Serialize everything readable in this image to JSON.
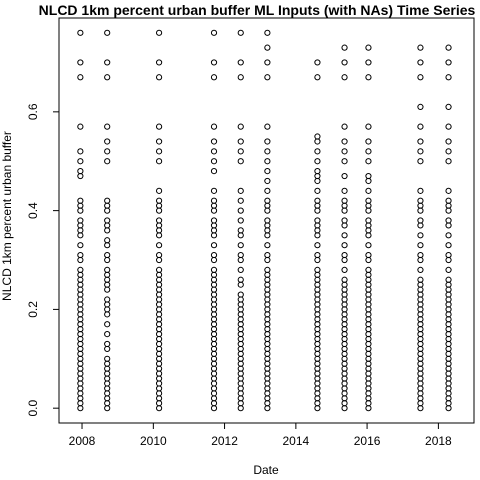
{
  "chart_data": {
    "type": "scatter",
    "title": "NLCD 1km percent urban buffer ML Inputs (with NAs) Time Series",
    "xlabel": "Date",
    "ylabel": "NLCD 1km percent urban buffer",
    "xlim": [
      "2007-05-10",
      "2019-01-01"
    ],
    "ylim": [
      -0.03,
      0.79
    ],
    "x_ticks": [
      {
        "date": "2008-01-01",
        "label": "2008"
      },
      {
        "date": "2010-01-01",
        "label": "2010"
      },
      {
        "date": "2012-01-01",
        "label": "2012"
      },
      {
        "date": "2014-01-01",
        "label": "2014"
      },
      {
        "date": "2016-01-01",
        "label": "2016"
      },
      {
        "date": "2018-01-01",
        "label": "2018"
      }
    ],
    "y_ticks": [
      0.0,
      0.2,
      0.4,
      0.6
    ],
    "y_tick_labels": [
      "0.0",
      "0.2",
      "0.4",
      "0.6"
    ],
    "grid": false,
    "series": [
      {
        "date": "2007-12-15",
        "values": [
          0.76,
          0.7,
          0.67,
          0.57,
          0.52,
          0.5,
          0.48,
          0.47,
          0.42,
          0.41,
          0.4,
          0.38,
          0.37,
          0.36,
          0.35,
          0.33,
          0.31,
          0.3,
          0.28,
          0.27,
          0.26,
          0.25,
          0.24,
          0.23,
          0.22,
          0.21,
          0.2,
          0.19,
          0.18,
          0.17,
          0.16,
          0.15,
          0.14,
          0.13,
          0.12,
          0.11,
          0.1,
          0.09,
          0.08,
          0.07,
          0.06,
          0.05,
          0.04,
          0.03,
          0.02,
          0.01,
          0.0
        ]
      },
      {
        "date": "2008-09-15",
        "values": [
          0.76,
          0.7,
          0.67,
          0.57,
          0.54,
          0.52,
          0.5,
          0.42,
          0.41,
          0.4,
          0.38,
          0.37,
          0.36,
          0.34,
          0.33,
          0.31,
          0.3,
          0.28,
          0.27,
          0.26,
          0.25,
          0.24,
          0.22,
          0.21,
          0.2,
          0.19,
          0.17,
          0.15,
          0.13,
          0.12,
          0.1,
          0.09,
          0.08,
          0.07,
          0.06,
          0.05,
          0.04,
          0.03,
          0.02,
          0.01,
          0.0
        ]
      },
      {
        "date": "2010-03-01",
        "values": [
          0.76,
          0.7,
          0.67,
          0.57,
          0.54,
          0.52,
          0.5,
          0.44,
          0.42,
          0.41,
          0.4,
          0.38,
          0.37,
          0.36,
          0.35,
          0.33,
          0.31,
          0.3,
          0.28,
          0.27,
          0.26,
          0.25,
          0.24,
          0.23,
          0.22,
          0.21,
          0.2,
          0.19,
          0.18,
          0.17,
          0.16,
          0.15,
          0.14,
          0.13,
          0.12,
          0.11,
          0.1,
          0.09,
          0.08,
          0.07,
          0.06,
          0.05,
          0.04,
          0.03,
          0.02,
          0.01,
          0.0
        ]
      },
      {
        "date": "2011-09-15",
        "values": [
          0.76,
          0.7,
          0.67,
          0.57,
          0.54,
          0.52,
          0.5,
          0.48,
          0.44,
          0.42,
          0.41,
          0.4,
          0.38,
          0.37,
          0.36,
          0.35,
          0.33,
          0.31,
          0.3,
          0.28,
          0.27,
          0.26,
          0.25,
          0.24,
          0.23,
          0.22,
          0.21,
          0.2,
          0.19,
          0.18,
          0.17,
          0.16,
          0.15,
          0.14,
          0.13,
          0.12,
          0.11,
          0.1,
          0.09,
          0.08,
          0.07,
          0.06,
          0.05,
          0.04,
          0.03,
          0.02,
          0.01,
          0.0
        ]
      },
      {
        "date": "2012-06-15",
        "values": [
          0.76,
          0.7,
          0.67,
          0.57,
          0.54,
          0.52,
          0.5,
          0.44,
          0.42,
          0.4,
          0.38,
          0.36,
          0.35,
          0.33,
          0.31,
          0.3,
          0.28,
          0.26,
          0.25,
          0.23,
          0.22,
          0.21,
          0.2,
          0.19,
          0.18,
          0.17,
          0.16,
          0.15,
          0.14,
          0.13,
          0.12,
          0.11,
          0.1,
          0.09,
          0.08,
          0.07,
          0.06,
          0.05,
          0.04,
          0.03,
          0.02,
          0.01,
          0.0
        ]
      },
      {
        "date": "2013-03-15",
        "values": [
          0.76,
          0.73,
          0.7,
          0.67,
          0.57,
          0.54,
          0.52,
          0.5,
          0.48,
          0.46,
          0.44,
          0.42,
          0.41,
          0.4,
          0.38,
          0.37,
          0.36,
          0.35,
          0.33,
          0.31,
          0.3,
          0.28,
          0.27,
          0.26,
          0.25,
          0.24,
          0.23,
          0.22,
          0.21,
          0.2,
          0.19,
          0.18,
          0.17,
          0.16,
          0.15,
          0.14,
          0.13,
          0.12,
          0.11,
          0.1,
          0.09,
          0.08,
          0.07,
          0.06,
          0.05,
          0.04,
          0.03,
          0.02,
          0.01,
          0.0
        ]
      },
      {
        "date": "2014-08-10",
        "values": [
          0.7,
          0.67,
          0.55,
          0.54,
          0.52,
          0.5,
          0.48,
          0.47,
          0.46,
          0.44,
          0.42,
          0.41,
          0.4,
          0.38,
          0.37,
          0.36,
          0.35,
          0.33,
          0.31,
          0.3,
          0.28,
          0.27,
          0.26,
          0.25,
          0.24,
          0.23,
          0.22,
          0.21,
          0.2,
          0.19,
          0.18,
          0.17,
          0.16,
          0.15,
          0.14,
          0.13,
          0.12,
          0.11,
          0.1,
          0.09,
          0.08,
          0.07,
          0.06,
          0.05,
          0.04,
          0.03,
          0.02,
          0.01,
          0.0
        ]
      },
      {
        "date": "2015-05-15",
        "values": [
          0.73,
          0.7,
          0.67,
          0.57,
          0.54,
          0.52,
          0.5,
          0.47,
          0.44,
          0.42,
          0.41,
          0.4,
          0.38,
          0.37,
          0.35,
          0.33,
          0.31,
          0.3,
          0.28,
          0.26,
          0.25,
          0.24,
          0.23,
          0.22,
          0.21,
          0.2,
          0.19,
          0.18,
          0.17,
          0.16,
          0.15,
          0.14,
          0.13,
          0.12,
          0.11,
          0.1,
          0.09,
          0.08,
          0.07,
          0.06,
          0.05,
          0.04,
          0.03,
          0.02,
          0.01,
          0.0
        ]
      },
      {
        "date": "2016-01-15",
        "values": [
          0.73,
          0.7,
          0.67,
          0.57,
          0.54,
          0.52,
          0.5,
          0.47,
          0.46,
          0.44,
          0.42,
          0.41,
          0.4,
          0.38,
          0.37,
          0.36,
          0.35,
          0.33,
          0.31,
          0.3,
          0.28,
          0.27,
          0.26,
          0.25,
          0.24,
          0.23,
          0.22,
          0.21,
          0.2,
          0.19,
          0.18,
          0.17,
          0.16,
          0.15,
          0.14,
          0.13,
          0.12,
          0.11,
          0.1,
          0.09,
          0.08,
          0.07,
          0.06,
          0.05,
          0.04,
          0.03,
          0.02,
          0.01,
          0.0
        ]
      },
      {
        "date": "2017-07-01",
        "values": [
          0.73,
          0.7,
          0.67,
          0.61,
          0.57,
          0.54,
          0.52,
          0.5,
          0.44,
          0.42,
          0.41,
          0.4,
          0.38,
          0.37,
          0.35,
          0.33,
          0.31,
          0.3,
          0.28,
          0.26,
          0.25,
          0.24,
          0.23,
          0.22,
          0.21,
          0.2,
          0.19,
          0.18,
          0.17,
          0.16,
          0.15,
          0.14,
          0.13,
          0.12,
          0.11,
          0.1,
          0.09,
          0.08,
          0.07,
          0.06,
          0.05,
          0.04,
          0.03,
          0.02,
          0.01,
          0.0
        ]
      },
      {
        "date": "2018-04-15",
        "values": [
          0.73,
          0.7,
          0.67,
          0.61,
          0.57,
          0.54,
          0.52,
          0.5,
          0.44,
          0.42,
          0.41,
          0.4,
          0.38,
          0.37,
          0.35,
          0.33,
          0.31,
          0.3,
          0.28,
          0.26,
          0.25,
          0.24,
          0.23,
          0.22,
          0.21,
          0.2,
          0.19,
          0.18,
          0.17,
          0.16,
          0.15,
          0.14,
          0.13,
          0.12,
          0.11,
          0.1,
          0.09,
          0.08,
          0.07,
          0.06,
          0.05,
          0.04,
          0.03,
          0.02,
          0.01,
          0.0
        ]
      }
    ]
  }
}
